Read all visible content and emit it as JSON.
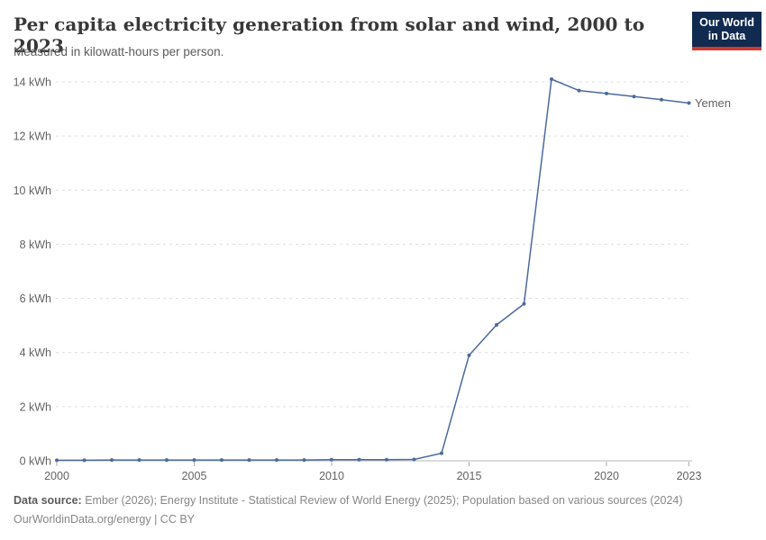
{
  "header": {
    "title": "Per capita electricity generation from solar and wind, 2000 to 2023",
    "subtitle": "Measured in kilowatt-hours per person."
  },
  "logo": {
    "line1": "Our World",
    "line2": "in Data",
    "bg_color": "#102a50",
    "accent_color": "#cf3a30"
  },
  "footer": {
    "source_label": "Data source:",
    "sources": "Ember (2026); Energy Institute - Statistical Review of World Energy (2025); Population based on various sources (2024)",
    "license": "OurWorldinData.org/energy | CC BY"
  },
  "chart_data": {
    "type": "line",
    "title": "Per capita electricity generation from solar and wind, 2000 to 2023",
    "subtitle": "Measured in kilowatt-hours per person.",
    "xlabel": "",
    "ylabel": "",
    "unit": "kWh",
    "xlim": [
      2000,
      2023
    ],
    "ylim": [
      0,
      14
    ],
    "grid": true,
    "legend_position": "end-of-line",
    "x": [
      2000,
      2001,
      2002,
      2003,
      2004,
      2005,
      2006,
      2007,
      2008,
      2009,
      2010,
      2011,
      2012,
      2013,
      2014,
      2015,
      2016,
      2017,
      2018,
      2019,
      2020,
      2021,
      2022,
      2023
    ],
    "series": [
      {
        "name": "Yemen",
        "color": "#4c6a9c",
        "values": [
          0.02,
          0.02,
          0.03,
          0.03,
          0.03,
          0.03,
          0.03,
          0.03,
          0.03,
          0.03,
          0.04,
          0.04,
          0.04,
          0.05,
          0.28,
          3.9,
          5.02,
          5.8,
          14.1,
          13.68,
          13.57,
          13.46,
          13.34,
          13.22
        ]
      }
    ],
    "yticks": [
      {
        "value": 0,
        "label": "0 kWh"
      },
      {
        "value": 2,
        "label": "2 kWh"
      },
      {
        "value": 4,
        "label": "4 kWh"
      },
      {
        "value": 6,
        "label": "6 kWh"
      },
      {
        "value": 8,
        "label": "8 kWh"
      },
      {
        "value": 10,
        "label": "10 kWh"
      },
      {
        "value": 12,
        "label": "12 kWh"
      },
      {
        "value": 14,
        "label": "14 kWh"
      }
    ],
    "xticks": [
      {
        "value": 2000,
        "label": "2000"
      },
      {
        "value": 2005,
        "label": "2005"
      },
      {
        "value": 2010,
        "label": "2010"
      },
      {
        "value": 2015,
        "label": "2015"
      },
      {
        "value": 2020,
        "label": "2020"
      },
      {
        "value": 2023,
        "label": "2023"
      }
    ],
    "colors": {
      "gridline": "#dcdcdc",
      "axis": "#b9b9b9",
      "tick": "#aeaeae"
    }
  }
}
